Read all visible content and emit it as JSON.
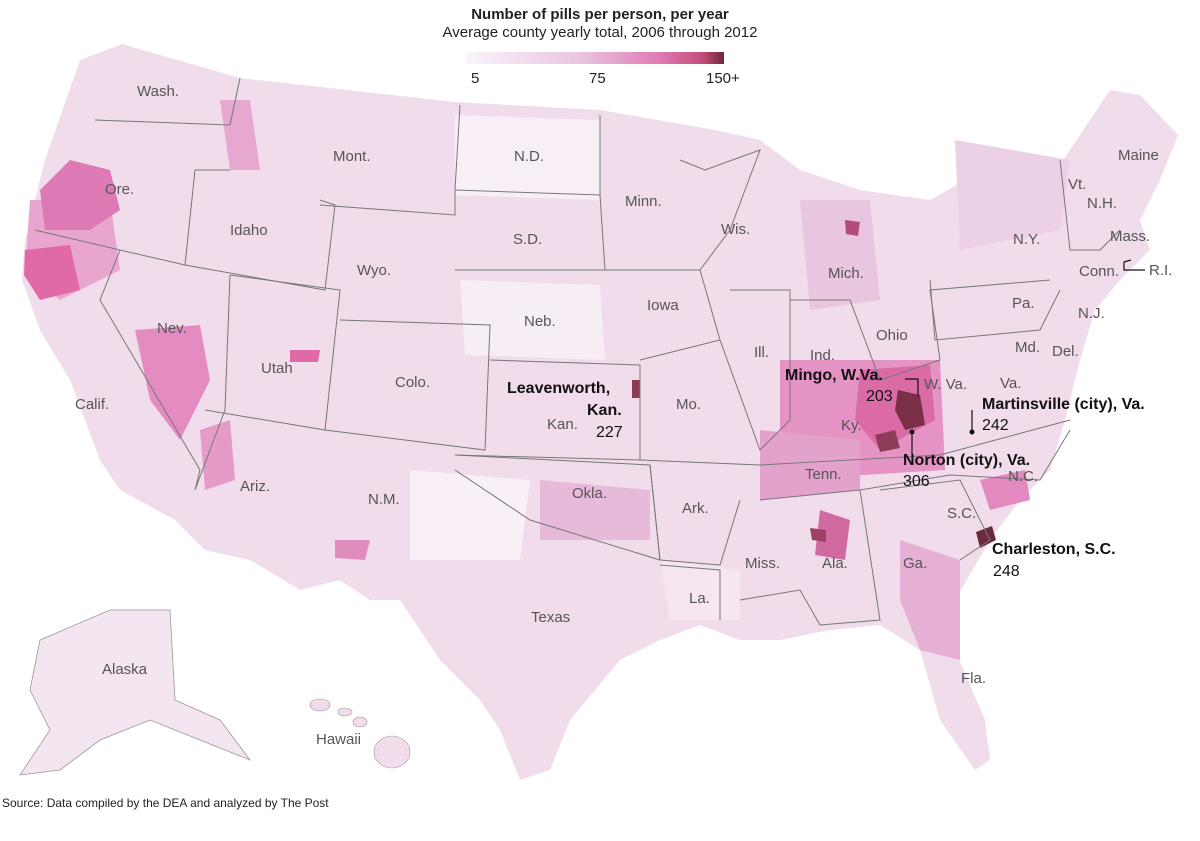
{
  "header": {
    "title": "Number of pills per person, per year",
    "subtitle": "Average county yearly total, 2006 through 2012"
  },
  "legend": {
    "ticks": [
      "5",
      "75",
      "150+"
    ],
    "colors": [
      "#f6f0f6",
      "#e9c4e0",
      "#e07bb4",
      "#c93f7f",
      "#6b2b3c"
    ]
  },
  "state_labels": [
    "Wash.",
    "Ore.",
    "Calif.",
    "Idaho",
    "Nev.",
    "Mont.",
    "Wyo.",
    "Utah",
    "Ariz.",
    "Colo.",
    "N.M.",
    "N.D.",
    "S.D.",
    "Neb.",
    "Kan.",
    "Okla.",
    "Texas",
    "Minn.",
    "Iowa",
    "Mo.",
    "Ark.",
    "La.",
    "Wis.",
    "Ill.",
    "Mich.",
    "Ind.",
    "Ohio",
    "Ky.",
    "Tenn.",
    "Miss.",
    "Ala.",
    "Ga.",
    "Fla.",
    "S.C.",
    "N.C.",
    "Va.",
    "W. Va.",
    "Pa.",
    "N.Y.",
    "Vt.",
    "N.H.",
    "Maine",
    "Mass.",
    "Conn.",
    "R.I.",
    "N.J.",
    "Md.",
    "Del.",
    "Alaska",
    "Hawaii"
  ],
  "callouts": {
    "leavenworth": {
      "name_line1": "Leavenworth,",
      "name_line2": "Kan.",
      "value": "227"
    },
    "mingo": {
      "name": "Mingo, W.Va.",
      "value": "203"
    },
    "martinsville": {
      "name": "Martinsville (city), Va.",
      "value": "242"
    },
    "norton": {
      "name": "Norton (city), Va.",
      "value": "306"
    },
    "charleston": {
      "name": "Charleston, S.C.",
      "value": "248"
    }
  },
  "source": "Source: Data compiled by the DEA and analyzed by The Post"
}
